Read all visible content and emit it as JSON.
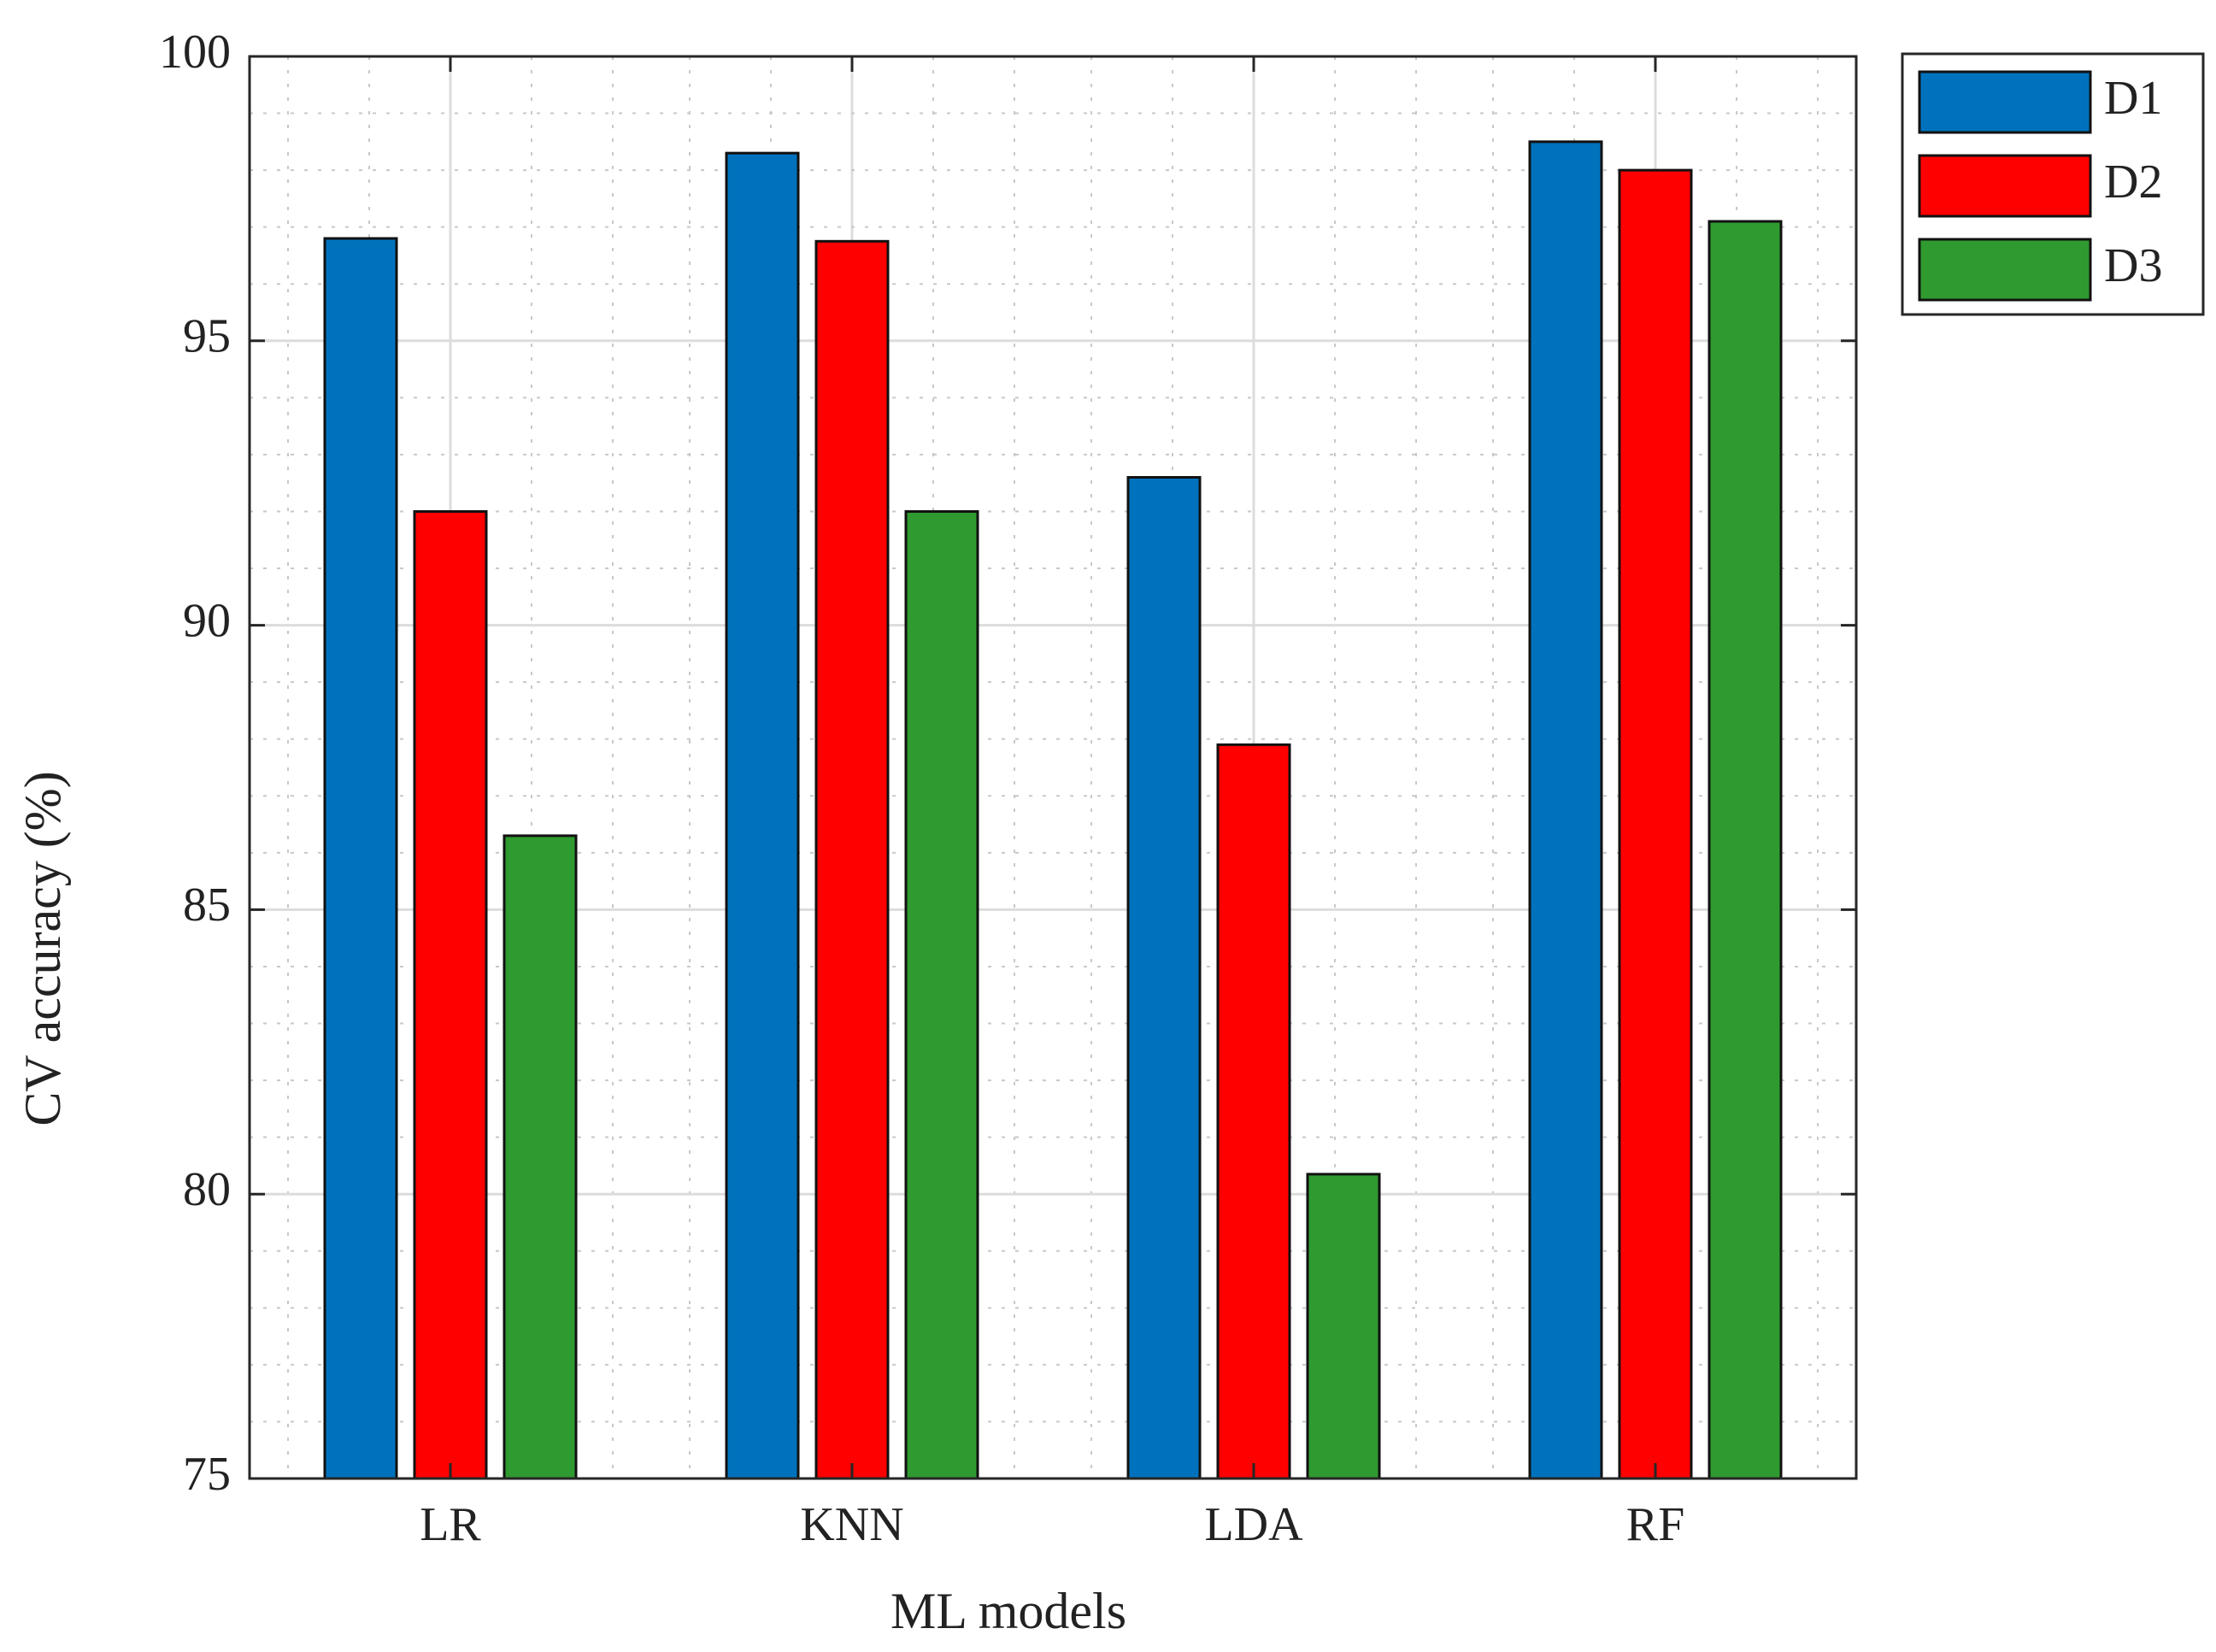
{
  "chart_data": {
    "type": "bar",
    "title": "",
    "xlabel": "ML models",
    "ylabel": "CV accuracy (%)",
    "categories": [
      "LR",
      "KNN",
      "LDA",
      "RF"
    ],
    "series": [
      {
        "name": "D1",
        "color": "#0072bd",
        "values": [
          96.8,
          98.3,
          92.6,
          98.5
        ]
      },
      {
        "name": "D2",
        "color": "#ff0000",
        "values": [
          92.0,
          96.75,
          87.9,
          98.0
        ]
      },
      {
        "name": "D3",
        "color": "#2f9a2f",
        "values": [
          86.3,
          92.0,
          80.35,
          97.1
        ]
      }
    ],
    "ylim": [
      75,
      100
    ],
    "yticks": [
      "75",
      "80",
      "85",
      "90",
      "95",
      "100"
    ],
    "grid": true,
    "minor_grid": true,
    "legend_position": "outside-top-right"
  }
}
